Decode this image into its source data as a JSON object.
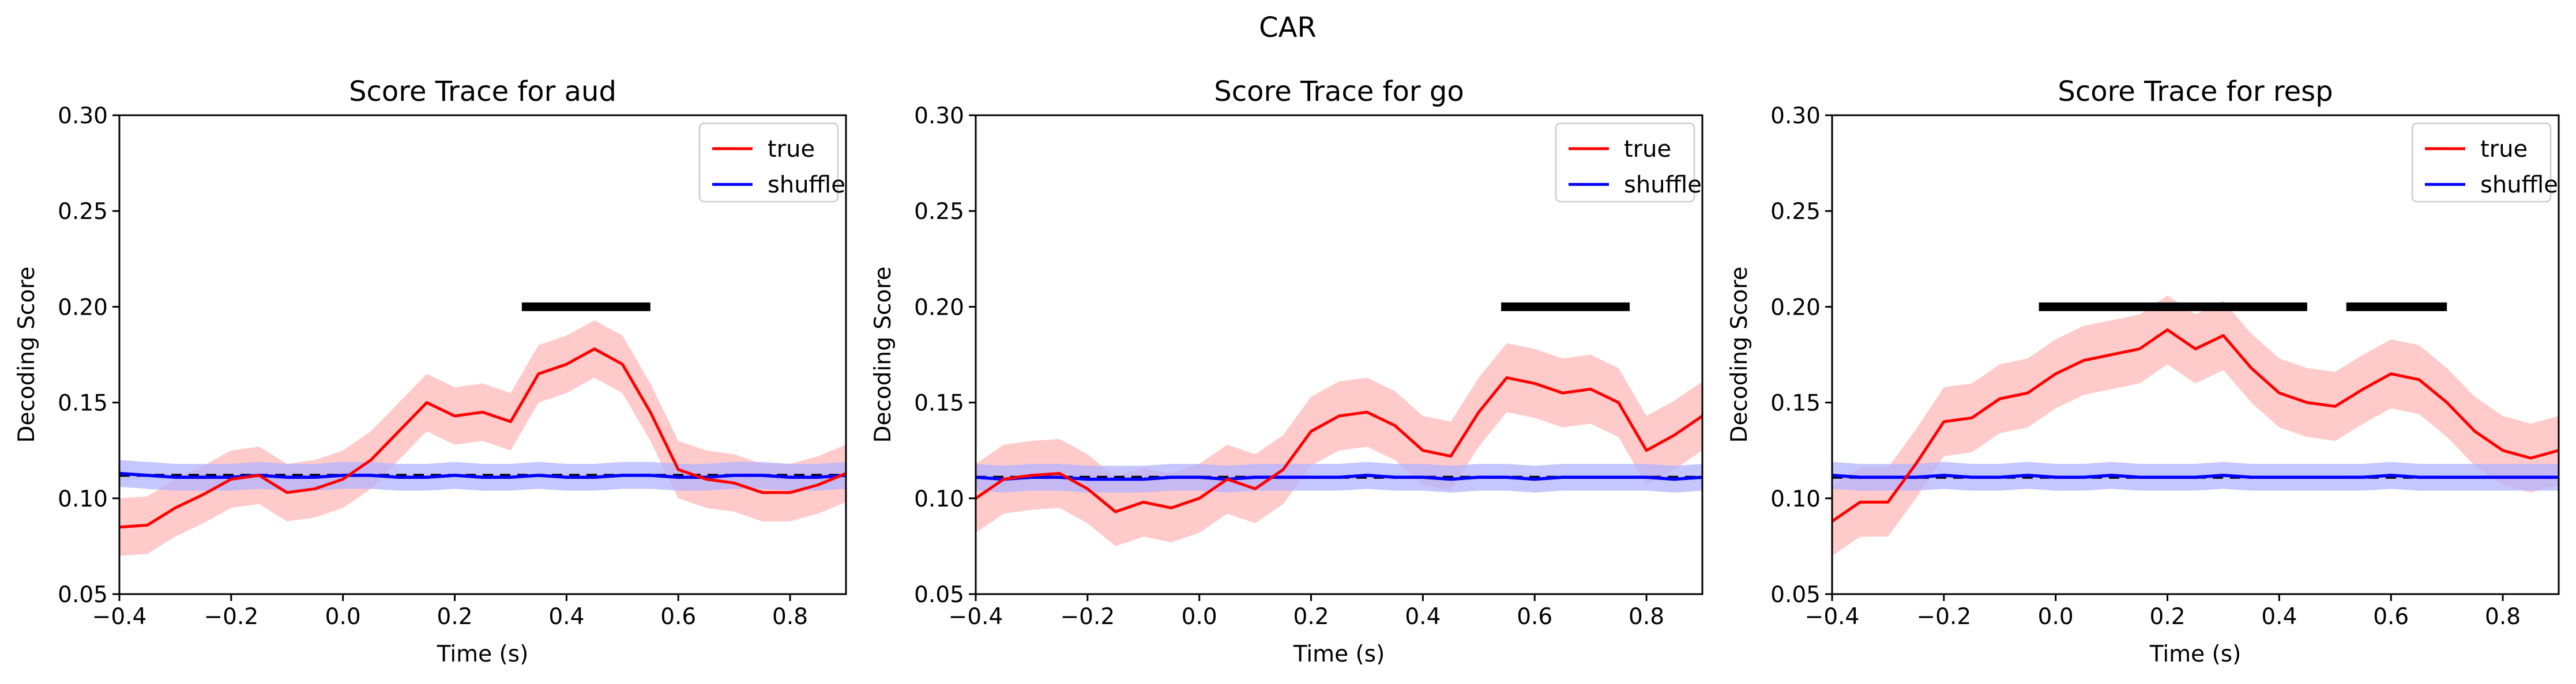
{
  "figure": {
    "suptitle": "CAR"
  },
  "colors": {
    "true": "#ff0000",
    "true_band": "#ffb3b3",
    "shuffle": "#0000ff",
    "shuffle_band": "#b3b3ff",
    "chance_line": "#000000",
    "significance_bar": "#000000"
  },
  "chart_data": [
    {
      "type": "line",
      "title": "Score Trace for aud",
      "xlabel": "Time (s)",
      "ylabel": "Decoding Score",
      "xlim": [
        -0.4,
        0.9
      ],
      "ylim": [
        0.05,
        0.3
      ],
      "xticks": [
        "−0.4",
        "−0.2",
        "0.0",
        "0.2",
        "0.4",
        "0.6",
        "0.8"
      ],
      "xtick_values": [
        -0.4,
        -0.2,
        0.0,
        0.2,
        0.4,
        0.6,
        0.8
      ],
      "yticks": [
        "0.05",
        "0.10",
        "0.15",
        "0.20",
        "0.25",
        "0.30"
      ],
      "ytick_values": [
        0.05,
        0.1,
        0.15,
        0.2,
        0.25,
        0.3
      ],
      "grid": false,
      "legend_position": "top-right",
      "legend": [
        "true",
        "shuffle"
      ],
      "chance_level": 0.112,
      "x": [
        -0.4,
        -0.35,
        -0.3,
        -0.25,
        -0.2,
        -0.15,
        -0.1,
        -0.05,
        0.0,
        0.05,
        0.1,
        0.15,
        0.2,
        0.25,
        0.3,
        0.35,
        0.4,
        0.45,
        0.5,
        0.55,
        0.6,
        0.65,
        0.7,
        0.75,
        0.8,
        0.85,
        0.9
      ],
      "series": [
        {
          "name": "true",
          "values": [
            0.085,
            0.086,
            0.095,
            0.102,
            0.11,
            0.112,
            0.103,
            0.105,
            0.11,
            0.12,
            0.135,
            0.15,
            0.143,
            0.145,
            0.14,
            0.165,
            0.17,
            0.178,
            0.17,
            0.145,
            0.115,
            0.11,
            0.108,
            0.103,
            0.103,
            0.107,
            0.113
          ],
          "band_width": 0.015
        },
        {
          "name": "shuffle",
          "values": [
            0.113,
            0.112,
            0.111,
            0.111,
            0.111,
            0.112,
            0.111,
            0.111,
            0.112,
            0.112,
            0.111,
            0.111,
            0.112,
            0.111,
            0.111,
            0.112,
            0.111,
            0.111,
            0.112,
            0.112,
            0.111,
            0.111,
            0.112,
            0.112,
            0.111,
            0.111,
            0.112
          ],
          "band_width": 0.007
        }
      ],
      "significance": [
        [
          0.32,
          0.55
        ]
      ],
      "significance_y": 0.2
    },
    {
      "type": "line",
      "title": "Score Trace for go",
      "xlabel": "Time (s)",
      "ylabel": "Decoding Score",
      "xlim": [
        -0.4,
        0.9
      ],
      "ylim": [
        0.05,
        0.3
      ],
      "xticks": [
        "−0.4",
        "−0.2",
        "0.0",
        "0.2",
        "0.4",
        "0.6",
        "0.8"
      ],
      "xtick_values": [
        -0.4,
        -0.2,
        0.0,
        0.2,
        0.4,
        0.6,
        0.8
      ],
      "yticks": [
        "0.05",
        "0.10",
        "0.15",
        "0.20",
        "0.25",
        "0.30"
      ],
      "ytick_values": [
        0.05,
        0.1,
        0.15,
        0.2,
        0.25,
        0.3
      ],
      "grid": false,
      "legend_position": "top-right",
      "legend": [
        "true",
        "shuffle"
      ],
      "chance_level": 0.111,
      "x": [
        -0.4,
        -0.35,
        -0.3,
        -0.25,
        -0.2,
        -0.15,
        -0.1,
        -0.05,
        0.0,
        0.05,
        0.1,
        0.15,
        0.2,
        0.25,
        0.3,
        0.35,
        0.4,
        0.45,
        0.5,
        0.55,
        0.6,
        0.65,
        0.7,
        0.75,
        0.8,
        0.85,
        0.9
      ],
      "series": [
        {
          "name": "true",
          "values": [
            0.1,
            0.11,
            0.112,
            0.113,
            0.105,
            0.093,
            0.098,
            0.095,
            0.1,
            0.11,
            0.105,
            0.115,
            0.135,
            0.143,
            0.145,
            0.138,
            0.125,
            0.122,
            0.145,
            0.163,
            0.16,
            0.155,
            0.157,
            0.15,
            0.125,
            0.133,
            0.143
          ],
          "band_width": 0.018
        },
        {
          "name": "shuffle",
          "values": [
            0.111,
            0.11,
            0.111,
            0.111,
            0.11,
            0.11,
            0.11,
            0.111,
            0.111,
            0.11,
            0.111,
            0.111,
            0.111,
            0.111,
            0.112,
            0.111,
            0.111,
            0.11,
            0.111,
            0.111,
            0.11,
            0.111,
            0.111,
            0.111,
            0.111,
            0.11,
            0.111
          ],
          "band_width": 0.007
        }
      ],
      "significance": [
        [
          0.54,
          0.77
        ]
      ],
      "significance_y": 0.2
    },
    {
      "type": "line",
      "title": "Score Trace for resp",
      "xlabel": "Time (s)",
      "ylabel": "Decoding Score",
      "xlim": [
        -0.4,
        0.9
      ],
      "ylim": [
        0.05,
        0.3
      ],
      "xticks": [
        "−0.4",
        "−0.2",
        "0.0",
        "0.2",
        "0.4",
        "0.6",
        "0.8"
      ],
      "xtick_values": [
        -0.4,
        -0.2,
        0.0,
        0.2,
        0.4,
        0.6,
        0.8
      ],
      "yticks": [
        "0.05",
        "0.10",
        "0.15",
        "0.20",
        "0.25",
        "0.30"
      ],
      "ytick_values": [
        0.05,
        0.1,
        0.15,
        0.2,
        0.25,
        0.3
      ],
      "grid": false,
      "legend_position": "top-right",
      "legend": [
        "true",
        "shuffle"
      ],
      "chance_level": 0.111,
      "x": [
        -0.4,
        -0.35,
        -0.3,
        -0.25,
        -0.2,
        -0.15,
        -0.1,
        -0.05,
        0.0,
        0.05,
        0.1,
        0.15,
        0.2,
        0.25,
        0.3,
        0.35,
        0.4,
        0.45,
        0.5,
        0.55,
        0.6,
        0.65,
        0.7,
        0.75,
        0.8,
        0.85,
        0.9
      ],
      "series": [
        {
          "name": "true",
          "values": [
            0.088,
            0.098,
            0.098,
            0.118,
            0.14,
            0.142,
            0.152,
            0.155,
            0.165,
            0.172,
            0.175,
            0.178,
            0.188,
            0.178,
            0.185,
            0.168,
            0.155,
            0.15,
            0.148,
            0.157,
            0.165,
            0.162,
            0.15,
            0.135,
            0.125,
            0.121,
            0.125
          ],
          "band_width": 0.018
        },
        {
          "name": "shuffle",
          "values": [
            0.112,
            0.111,
            0.111,
            0.111,
            0.112,
            0.111,
            0.111,
            0.112,
            0.111,
            0.111,
            0.112,
            0.111,
            0.111,
            0.111,
            0.112,
            0.111,
            0.111,
            0.111,
            0.111,
            0.111,
            0.112,
            0.111,
            0.111,
            0.111,
            0.111,
            0.111,
            0.111
          ],
          "band_width": 0.007
        }
      ],
      "significance": [
        [
          -0.03,
          0.45
        ],
        [
          0.52,
          0.7
        ]
      ],
      "significance_y": 0.2
    }
  ]
}
